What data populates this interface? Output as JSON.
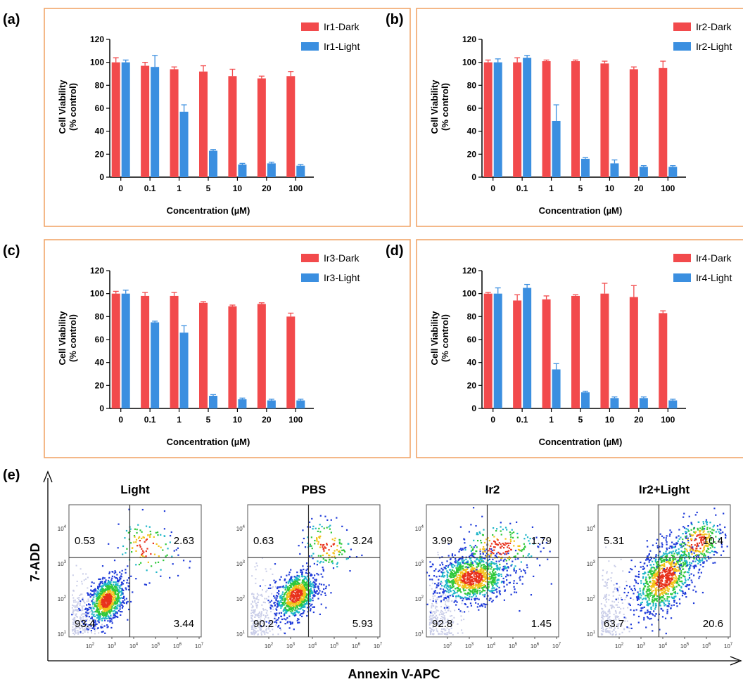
{
  "colors": {
    "dark": "#f24a4c",
    "light": "#3b8fe0",
    "frame": "#f0a060"
  },
  "chart_data": [
    {
      "panel_label": "(a)",
      "type": "bar",
      "categories": [
        "0",
        "0.1",
        "1",
        "5",
        "10",
        "20",
        "100"
      ],
      "ylim": [
        0,
        120
      ],
      "yticks": [
        "0",
        "20",
        "40",
        "60",
        "80",
        "100",
        "120"
      ],
      "ylabel": [
        "Cell Viability",
        "(% control)"
      ],
      "xlabel": "Concentration (µM)",
      "legend_position": "top-right",
      "series": [
        {
          "name": "Ir1-Dark",
          "values": [
            100,
            97,
            94,
            92,
            88,
            86,
            88
          ],
          "errors": [
            4,
            3,
            2,
            5,
            6,
            2,
            4
          ]
        },
        {
          "name": "Ir1-Light",
          "values": [
            100,
            96,
            57,
            23,
            11,
            12,
            10
          ],
          "errors": [
            2,
            10,
            6,
            1,
            1,
            1,
            1
          ]
        }
      ]
    },
    {
      "panel_label": "(b)",
      "type": "bar",
      "categories": [
        "0",
        "0.1",
        "1",
        "5",
        "10",
        "20",
        "100"
      ],
      "ylim": [
        0,
        120
      ],
      "yticks": [
        "0",
        "20",
        "40",
        "60",
        "80",
        "100",
        "120"
      ],
      "ylabel": [
        "Cell Viability",
        "(% control)"
      ],
      "xlabel": "Concentration (µM)",
      "legend_position": "top-right",
      "series": [
        {
          "name": "Ir2-Dark",
          "values": [
            100,
            100,
            101,
            101,
            99,
            94,
            95
          ],
          "errors": [
            2,
            4,
            1,
            1,
            2,
            2,
            6
          ]
        },
        {
          "name": "Ir2-Light",
          "values": [
            100,
            104,
            49,
            16,
            12,
            9,
            9
          ],
          "errors": [
            3,
            2,
            14,
            1,
            3,
            1,
            1
          ]
        }
      ]
    },
    {
      "panel_label": "(c)",
      "type": "bar",
      "categories": [
        "0",
        "0.1",
        "1",
        "5",
        "10",
        "20",
        "100"
      ],
      "ylim": [
        0,
        120
      ],
      "yticks": [
        "0",
        "20",
        "40",
        "60",
        "80",
        "100",
        "120"
      ],
      "ylabel": [
        "Cell Viability",
        "(% control)"
      ],
      "xlabel": "Concentration (µM)",
      "legend_position": "top-right",
      "series": [
        {
          "name": "Ir3-Dark",
          "values": [
            100,
            98,
            98,
            92,
            89,
            91,
            80
          ],
          "errors": [
            2,
            3,
            3,
            1,
            1,
            1,
            3
          ]
        },
        {
          "name": "Ir3-Light",
          "values": [
            100,
            75,
            66,
            11,
            8,
            7,
            7
          ],
          "errors": [
            3,
            1,
            6,
            1,
            1,
            1,
            1
          ]
        }
      ]
    },
    {
      "panel_label": "(d)",
      "type": "bar",
      "categories": [
        "0",
        "0.1",
        "1",
        "5",
        "10",
        "20",
        "100"
      ],
      "ylim": [
        0,
        120
      ],
      "yticks": [
        "0",
        "20",
        "40",
        "60",
        "80",
        "100",
        "120"
      ],
      "ylabel": [
        "Cell Viability",
        "(% control)"
      ],
      "xlabel": "Concentration (µM)",
      "legend_position": "top-right",
      "series": [
        {
          "name": "Ir4-Dark",
          "values": [
            100,
            94,
            95,
            98,
            100,
            97,
            83
          ],
          "errors": [
            1,
            5,
            3,
            1,
            9,
            10,
            2
          ]
        },
        {
          "name": "Ir4-Light",
          "values": [
            100,
            105,
            34,
            14,
            9,
            9,
            7
          ],
          "errors": [
            5,
            3,
            5,
            1,
            1,
            1,
            1
          ]
        }
      ]
    }
  ],
  "flow": {
    "panel_label": "(e)",
    "x_axis_label": "Annexin V-APC",
    "y_axis_label": "7-ADD",
    "x_tick_exponents": [
      "2",
      "3",
      "4",
      "5",
      "6",
      "7"
    ],
    "y_tick_exponents": [
      "1",
      "2",
      "3",
      "4"
    ],
    "tick_base": "10",
    "plots": [
      {
        "title": "Light",
        "q_ul": "0.53",
        "q_ur": "2.63",
        "q_ll": "93.4",
        "q_lr": "3.44"
      },
      {
        "title": "PBS",
        "q_ul": "0.63",
        "q_ur": "3.24",
        "q_ll": "90.2",
        "q_lr": "5.93"
      },
      {
        "title": "Ir2",
        "q_ul": "3.99",
        "q_ur": "1.79",
        "q_ll": "92.8",
        "q_lr": "1.45"
      },
      {
        "title": "Ir2+Light",
        "q_ul": "5.31",
        "q_ur": "10.4",
        "q_ll": "63.7",
        "q_lr": "20.6"
      }
    ]
  }
}
